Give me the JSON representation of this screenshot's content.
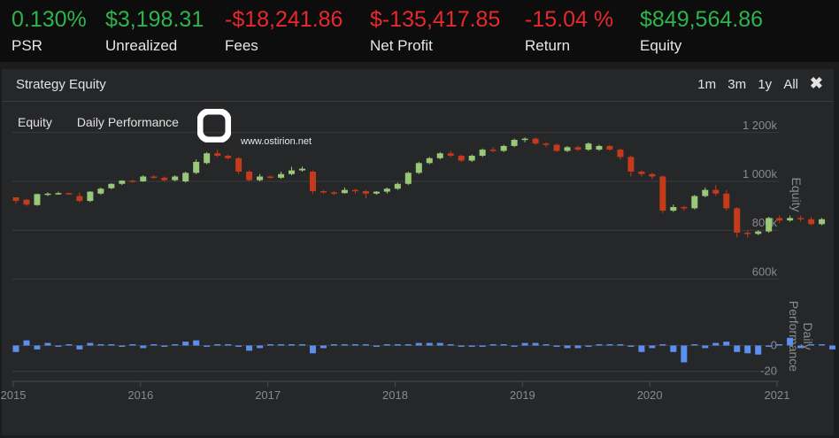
{
  "stats": [
    {
      "value": "0.130%",
      "label": "PSR",
      "tone": "pos"
    },
    {
      "value": "$3,198.31",
      "label": "Unrealized",
      "tone": "pos"
    },
    {
      "value": "-$18,241.86",
      "label": "Fees",
      "tone": "neg"
    },
    {
      "value": "$-135,417.85",
      "label": "Net Profit",
      "tone": "neg"
    },
    {
      "value": "-15.04 %",
      "label": "Return",
      "tone": "neg"
    },
    {
      "value": "$849,564.86",
      "label": "Equity",
      "tone": "pos"
    }
  ],
  "panel": {
    "title": "Strategy Equity",
    "ranges": [
      "1m",
      "3m",
      "1y",
      "All"
    ],
    "close_glyph": "✖",
    "tabs": [
      "Equity",
      "Daily Performance"
    ]
  },
  "logo": {
    "glyph": "O",
    "text": "www.ostirion.net"
  },
  "colors": {
    "up": "#98c878",
    "down": "#c43a1a",
    "bar": "#5b8ff0",
    "grid": "#3a3b3e",
    "axis_text": "#8a8a8a"
  },
  "chart_data": [
    {
      "type": "candlestick",
      "name": "equity",
      "yaxis_title": "Equity",
      "ylim": [
        500,
        1250
      ],
      "yticks": [
        600,
        800,
        1000,
        1200
      ],
      "ytick_labels": [
        "600k",
        "800k",
        "1 000k",
        "1 200k"
      ],
      "x_start": 2015.0,
      "x_step": 0.0833,
      "ohlc": [
        [
          935,
          932,
          910,
          920
        ],
        [
          925,
          928,
          900,
          905
        ],
        [
          903,
          950,
          900,
          948
        ],
        [
          948,
          955,
          940,
          950
        ],
        [
          950,
          958,
          945,
          952
        ],
        [
          952,
          955,
          945,
          950
        ],
        [
          940,
          955,
          915,
          920
        ],
        [
          920,
          960,
          915,
          958
        ],
        [
          950,
          975,
          945,
          970
        ],
        [
          972,
          992,
          968,
          990
        ],
        [
          990,
          1005,
          985,
          1003
        ],
        [
          1003,
          1008,
          995,
          1000
        ],
        [
          1000,
          1025,
          998,
          1020
        ],
        [
          1020,
          1025,
          1010,
          1015
        ],
        [
          1015,
          1020,
          1000,
          1005
        ],
        [
          1005,
          1025,
          1000,
          1020
        ],
        [
          1000,
          1040,
          995,
          1035
        ],
        [
          1035,
          1090,
          1030,
          1080
        ],
        [
          1075,
          1120,
          1070,
          1115
        ],
        [
          1115,
          1130,
          1100,
          1105
        ],
        [
          1105,
          1110,
          1090,
          1095
        ],
        [
          1095,
          1100,
          1030,
          1040
        ],
        [
          1040,
          1045,
          1000,
          1005
        ],
        [
          1005,
          1030,
          1000,
          1020
        ],
        [
          1020,
          1025,
          1010,
          1015
        ],
        [
          1015,
          1040,
          1010,
          1030
        ],
        [
          1030,
          1060,
          1025,
          1045
        ],
        [
          1045,
          1060,
          1040,
          1052
        ],
        [
          1040,
          1045,
          950,
          960
        ],
        [
          960,
          965,
          950,
          955
        ],
        [
          955,
          960,
          945,
          952
        ],
        [
          952,
          975,
          950,
          965
        ],
        [
          965,
          970,
          950,
          960
        ],
        [
          960,
          965,
          930,
          950
        ],
        [
          950,
          960,
          945,
          958
        ],
        [
          958,
          975,
          950,
          970
        ],
        [
          970,
          995,
          965,
          990
        ],
        [
          990,
          1040,
          985,
          1035
        ],
        [
          1035,
          1080,
          1030,
          1075
        ],
        [
          1075,
          1100,
          1070,
          1095
        ],
        [
          1095,
          1120,
          1090,
          1115
        ],
        [
          1115,
          1125,
          1100,
          1105
        ],
        [
          1105,
          1110,
          1080,
          1085
        ],
        [
          1085,
          1110,
          1080,
          1105
        ],
        [
          1105,
          1135,
          1100,
          1130
        ],
        [
          1130,
          1140,
          1120,
          1125
        ],
        [
          1125,
          1150,
          1120,
          1145
        ],
        [
          1145,
          1175,
          1140,
          1170
        ],
        [
          1170,
          1180,
          1160,
          1175
        ],
        [
          1175,
          1180,
          1150,
          1155
        ],
        [
          1155,
          1160,
          1140,
          1150
        ],
        [
          1150,
          1155,
          1120,
          1125
        ],
        [
          1125,
          1145,
          1120,
          1140
        ],
        [
          1140,
          1145,
          1125,
          1130
        ],
        [
          1130,
          1160,
          1125,
          1155
        ],
        [
          1130,
          1150,
          1125,
          1145
        ],
        [
          1145,
          1150,
          1125,
          1130
        ],
        [
          1130,
          1135,
          1090,
          1100
        ],
        [
          1100,
          1105,
          1020,
          1040
        ],
        [
          1040,
          1045,
          1020,
          1030
        ],
        [
          1030,
          1035,
          1010,
          1020
        ],
        [
          1020,
          1025,
          870,
          880
        ],
        [
          880,
          905,
          875,
          895
        ],
        [
          895,
          900,
          880,
          890
        ],
        [
          890,
          945,
          885,
          940
        ],
        [
          940,
          975,
          935,
          965
        ],
        [
          965,
          985,
          940,
          950
        ],
        [
          950,
          965,
          880,
          890
        ],
        [
          890,
          895,
          770,
          790
        ],
        [
          790,
          800,
          770,
          785
        ],
        [
          785,
          800,
          780,
          795
        ],
        [
          795,
          855,
          790,
          850
        ],
        [
          850,
          860,
          830,
          840
        ],
        [
          840,
          860,
          835,
          850
        ],
        [
          850,
          860,
          835,
          845
        ],
        [
          845,
          855,
          820,
          825
        ],
        [
          825,
          850,
          820,
          845
        ]
      ]
    },
    {
      "type": "bar",
      "name": "daily-performance",
      "yaxis_title": "Daily Performance",
      "ylim": [
        -25,
        25
      ],
      "yticks": [
        -20,
        0
      ],
      "ytick_labels": [
        "-20",
        "0"
      ],
      "x_start": 2015.0,
      "x_step": 0.0833,
      "values": [
        -5,
        4,
        -3,
        2,
        -1,
        1,
        -3,
        2,
        1,
        1,
        -1,
        1,
        -2,
        1,
        -1,
        1,
        3,
        4,
        -1,
        1,
        1,
        -1,
        -4,
        -2,
        1,
        1,
        1,
        1,
        -6,
        -2,
        1,
        1,
        1,
        1,
        -1,
        1,
        1,
        1,
        2,
        2,
        2,
        1,
        -1,
        -1,
        -1,
        1,
        1,
        -1,
        2,
        2,
        1,
        -1,
        -2,
        -2,
        -1,
        1,
        1,
        1,
        -1,
        -5,
        -2,
        1,
        -5,
        -13,
        1,
        -2,
        2,
        3,
        -5,
        -6,
        -7,
        -1,
        1,
        6,
        -2,
        1,
        1,
        -3,
        2
      ],
      "xticks": [
        2015,
        2016,
        2017,
        2018,
        2019,
        2020,
        2021
      ],
      "xtick_labels": [
        "2015",
        "2016",
        "2017",
        "2018",
        "2019",
        "2020",
        "2021"
      ]
    }
  ]
}
